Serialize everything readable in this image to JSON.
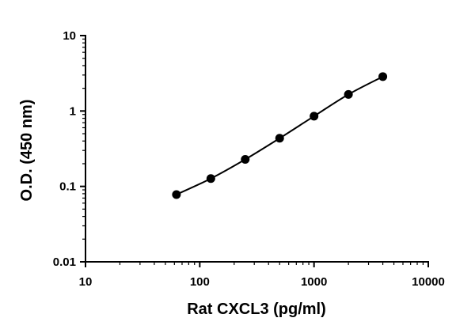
{
  "chart_data": {
    "type": "scatter",
    "title": "",
    "xlabel": "Rat CXCL3 (pg/ml)",
    "ylabel": "O.D. (450 nm)",
    "xscale": "log",
    "yscale": "log",
    "xlim": [
      10,
      10000
    ],
    "ylim": [
      0.01,
      10
    ],
    "x_ticks": [
      "10",
      "100",
      "1000",
      "10000"
    ],
    "y_ticks": [
      "0.01",
      "0.1",
      "1",
      "10"
    ],
    "grid": false,
    "legend": "none",
    "fit_curve": true,
    "series": [
      {
        "x": [
          62.5,
          125,
          250,
          500,
          1000,
          2000,
          4000
        ],
        "y": [
          0.078,
          0.127,
          0.228,
          0.435,
          0.853,
          1.66,
          2.86
        ]
      }
    ]
  }
}
